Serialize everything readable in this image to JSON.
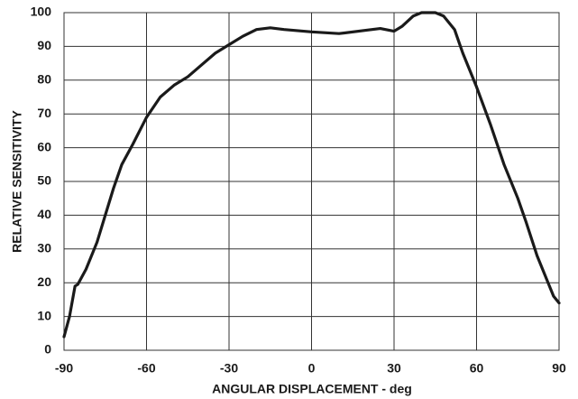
{
  "chart_data": {
    "type": "line",
    "x_label": "ANGULAR DISPLACEMENT - deg",
    "y_label": "RELATIVE SENSITIVITY",
    "x": [
      -90,
      -88,
      -86,
      -85,
      -84,
      -82,
      -78,
      -75,
      -72,
      -69,
      -65,
      -60,
      -55,
      -50,
      -45,
      -40,
      -35,
      -30,
      -25,
      -20,
      -15,
      -10,
      0,
      10,
      20,
      25,
      30,
      33,
      37,
      40,
      45,
      48,
      52,
      55,
      60,
      65,
      70,
      75,
      78,
      82,
      86,
      88,
      90
    ],
    "values": [
      4,
      10,
      19,
      19.5,
      21,
      24,
      32,
      40,
      48,
      55,
      61,
      69,
      75,
      78.5,
      81,
      84.5,
      88,
      90.5,
      93,
      95,
      95.5,
      95,
      94.3,
      93.8,
      94.8,
      95.3,
      94.5,
      96,
      99,
      100,
      100,
      99,
      95,
      88,
      78,
      67,
      55,
      45,
      38,
      28,
      20,
      16,
      14
    ],
    "color": "#1a1a1a",
    "xlim": [
      -90,
      90
    ],
    "xticks": [
      -90,
      -60,
      -30,
      0,
      30,
      60,
      90
    ],
    "ylim": [
      0,
      100
    ],
    "yticks": [
      0,
      10,
      20,
      30,
      40,
      50,
      60,
      70,
      80,
      90,
      100
    ],
    "grid": true
  }
}
